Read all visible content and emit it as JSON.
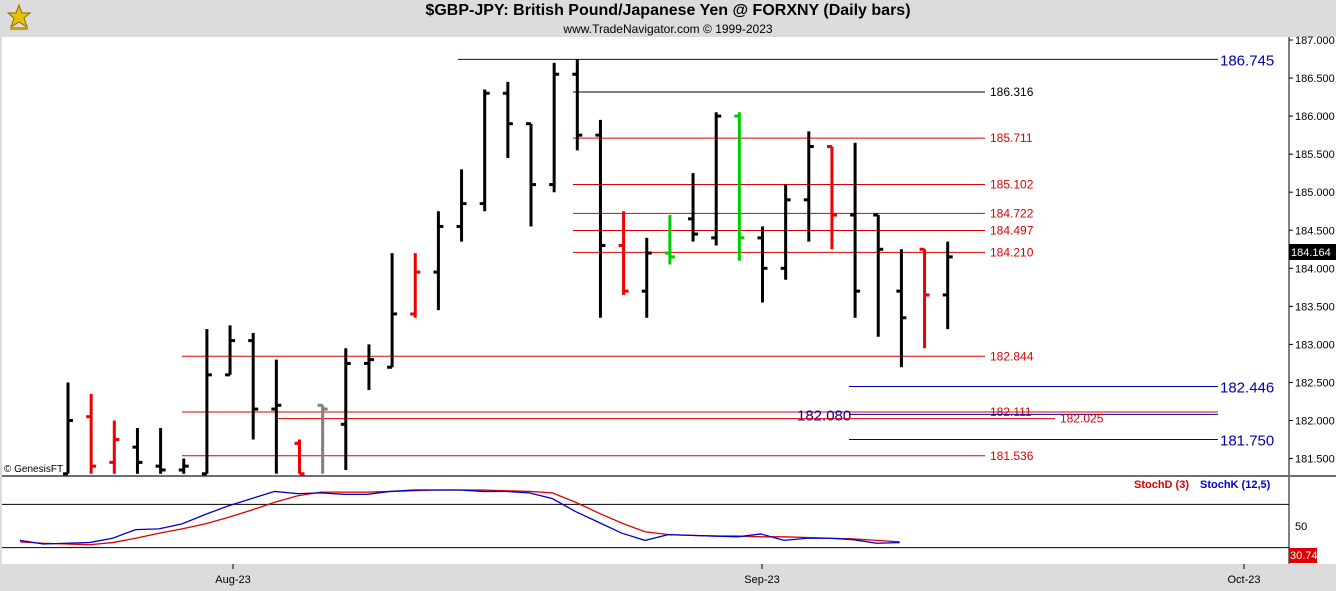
{
  "header": {
    "title": "$GBP-JPY:  British Pound/Japanese Yen @ FORXNY  (Daily bars)",
    "subtitle": "www.TradeNavigator.com © 1999-2023"
  },
  "watermark": "© GenesisFT",
  "colors": {
    "up": "#000000",
    "down": "#ee0000",
    "neutral": "#808080",
    "green": "#00cc00",
    "blue_level": "#0000aa",
    "red_level": "#dd0000",
    "stochD": "#dd0000",
    "stochK": "#0000cc"
  },
  "chart_data": [
    {
      "type": "ohlc",
      "yaxis": {
        "range": [
          181.3,
          187.1
        ],
        "ticks": [
          "187.000",
          "186.500",
          "186.000",
          "185.500",
          "185.000",
          "184.500",
          "184.000",
          "183.500",
          "183.000",
          "182.500",
          "182.000",
          "181.500"
        ],
        "side": "right"
      },
      "last_price": "184.164",
      "xaxis": {
        "labels": [
          "Aug-23",
          "Sep-23",
          "Oct-23"
        ]
      },
      "bars": [
        {
          "o": 181.3,
          "h": 182.5,
          "l": 181.3,
          "c": 182.0,
          "k": "up"
        },
        {
          "o": 182.05,
          "h": 182.35,
          "l": 181.3,
          "c": 181.4,
          "k": "down"
        },
        {
          "o": 181.45,
          "h": 182.0,
          "l": 181.3,
          "c": 181.75,
          "k": "down"
        },
        {
          "o": 181.65,
          "h": 181.9,
          "l": 181.3,
          "c": 181.45,
          "k": "up"
        },
        {
          "o": 181.4,
          "h": 181.9,
          "l": 181.3,
          "c": 181.35,
          "k": "up"
        },
        {
          "o": 181.35,
          "h": 181.5,
          "l": 181.3,
          "c": 181.4,
          "k": "up"
        },
        {
          "o": 181.3,
          "h": 183.2,
          "l": 181.3,
          "c": 182.6,
          "k": "up"
        },
        {
          "o": 182.6,
          "h": 183.25,
          "l": 182.6,
          "c": 183.05,
          "k": "up"
        },
        {
          "o": 183.05,
          "h": 183.15,
          "l": 181.75,
          "c": 182.15,
          "k": "up"
        },
        {
          "o": 182.15,
          "h": 182.8,
          "l": 181.3,
          "c": 182.2,
          "k": "up"
        },
        {
          "o": 181.7,
          "h": 181.75,
          "l": 181.3,
          "c": 181.3,
          "k": "down"
        },
        {
          "o": 182.2,
          "h": 182.2,
          "l": 181.3,
          "c": 182.15,
          "k": "neutral"
        },
        {
          "o": 181.95,
          "h": 182.95,
          "l": 181.35,
          "c": 182.75,
          "k": "up"
        },
        {
          "o": 182.75,
          "h": 183.0,
          "l": 182.4,
          "c": 182.8,
          "k": "up"
        },
        {
          "o": 182.7,
          "h": 184.2,
          "l": 182.7,
          "c": 183.4,
          "k": "up"
        },
        {
          "o": 183.4,
          "h": 184.2,
          "l": 183.35,
          "c": 183.95,
          "k": "down"
        },
        {
          "o": 183.95,
          "h": 184.75,
          "l": 183.45,
          "c": 184.55,
          "k": "up"
        },
        {
          "o": 184.55,
          "h": 185.3,
          "l": 184.35,
          "c": 184.85,
          "k": "up"
        },
        {
          "o": 184.85,
          "h": 186.35,
          "l": 184.75,
          "c": 186.3,
          "k": "up"
        },
        {
          "o": 186.3,
          "h": 186.45,
          "l": 185.45,
          "c": 185.9,
          "k": "up"
        },
        {
          "o": 185.9,
          "h": 185.9,
          "l": 184.55,
          "c": 185.1,
          "k": "up"
        },
        {
          "o": 185.1,
          "h": 186.7,
          "l": 185.0,
          "c": 186.55,
          "k": "up"
        },
        {
          "o": 186.55,
          "h": 186.75,
          "l": 185.55,
          "c": 185.75,
          "k": "up"
        },
        {
          "o": 185.75,
          "h": 185.95,
          "l": 183.35,
          "c": 184.3,
          "k": "up"
        },
        {
          "o": 184.3,
          "h": 184.75,
          "l": 183.65,
          "c": 183.7,
          "k": "down"
        },
        {
          "o": 183.7,
          "h": 184.4,
          "l": 183.35,
          "c": 184.2,
          "k": "up"
        },
        {
          "o": 184.2,
          "h": 184.7,
          "l": 184.05,
          "c": 184.15,
          "k": "green"
        },
        {
          "o": 184.65,
          "h": 185.25,
          "l": 184.35,
          "c": 184.45,
          "k": "up"
        },
        {
          "o": 184.4,
          "h": 186.05,
          "l": 184.3,
          "c": 186.0,
          "k": "up"
        },
        {
          "o": 186.0,
          "h": 186.05,
          "l": 184.1,
          "c": 184.4,
          "k": "green"
        },
        {
          "o": 184.4,
          "h": 184.55,
          "l": 183.55,
          "c": 184.0,
          "k": "up"
        },
        {
          "o": 184.0,
          "h": 185.1,
          "l": 183.85,
          "c": 184.9,
          "k": "up"
        },
        {
          "o": 184.9,
          "h": 185.8,
          "l": 184.35,
          "c": 185.6,
          "k": "up"
        },
        {
          "o": 185.6,
          "h": 185.6,
          "l": 184.25,
          "c": 184.7,
          "k": "down"
        },
        {
          "o": 184.7,
          "h": 185.65,
          "l": 183.35,
          "c": 183.7,
          "k": "up"
        },
        {
          "o": 184.7,
          "h": 184.7,
          "l": 183.1,
          "c": 184.25,
          "k": "up"
        },
        {
          "o": 183.7,
          "h": 184.25,
          "l": 182.7,
          "c": 183.35,
          "k": "up"
        },
        {
          "o": 184.25,
          "h": 184.25,
          "l": 182.95,
          "c": 183.65,
          "k": "down"
        },
        {
          "o": 183.65,
          "h": 184.35,
          "l": 183.2,
          "c": 184.15,
          "k": "up"
        }
      ],
      "levels": [
        {
          "label": "186.745",
          "value": 186.745,
          "color": "blue",
          "big": true
        },
        {
          "label": "186.316",
          "value": 186.316,
          "color": "black",
          "big": false
        },
        {
          "label": "185.711",
          "value": 185.711,
          "color": "red",
          "big": false
        },
        {
          "label": "185.102",
          "value": 185.102,
          "color": "red",
          "big": false
        },
        {
          "label": "184.722",
          "value": 184.722,
          "color": "red",
          "big": false
        },
        {
          "label": "184.497",
          "value": 184.497,
          "color": "red",
          "big": false
        },
        {
          "label": "184.210",
          "value": 184.21,
          "color": "red",
          "big": false
        },
        {
          "label": "182.844",
          "value": 182.844,
          "color": "red",
          "big": false
        },
        {
          "label": "182.446",
          "value": 182.446,
          "color": "blue",
          "big": true
        },
        {
          "label": "182.111",
          "value": 182.111,
          "color": "red",
          "big": false
        },
        {
          "label": "182.080",
          "value": 182.08,
          "color": "blue",
          "big": true
        },
        {
          "label": "182.025",
          "value": 182.025,
          "color": "red",
          "big": false
        },
        {
          "label": "181.750",
          "value": 181.75,
          "color": "blue",
          "big": true
        },
        {
          "label": "181.536",
          "value": 181.536,
          "color": "red",
          "big": false
        }
      ]
    },
    {
      "type": "line",
      "title": "StochD (3)",
      "title2": "StochK (12,5)",
      "yaxis": {
        "range": [
          0,
          100
        ],
        "ticks": [
          "50"
        ],
        "band": [
          20,
          80
        ]
      },
      "last_value": "30.74",
      "series": [
        {
          "name": "StochD (3)",
          "color": "red",
          "values": [
            28,
            26,
            25,
            24,
            27,
            33,
            40,
            46,
            53,
            62,
            72,
            83,
            92,
            97,
            97,
            97,
            98,
            99,
            100,
            100,
            100,
            99,
            98,
            96,
            83,
            68,
            54,
            42,
            38,
            37,
            36,
            36,
            35,
            35,
            34,
            33,
            32,
            30,
            28
          ]
        },
        {
          "name": "StochK (12,5)",
          "color": "blue",
          "values": [
            30,
            25,
            26,
            27,
            33,
            45,
            46,
            53,
            66,
            78,
            88,
            98,
            95,
            96,
            94,
            94,
            98,
            100,
            100,
            100,
            98,
            98,
            96,
            88,
            70,
            55,
            40,
            30,
            38,
            37,
            36,
            35,
            39,
            30,
            33,
            33,
            31,
            26,
            27
          ]
        }
      ]
    }
  ]
}
